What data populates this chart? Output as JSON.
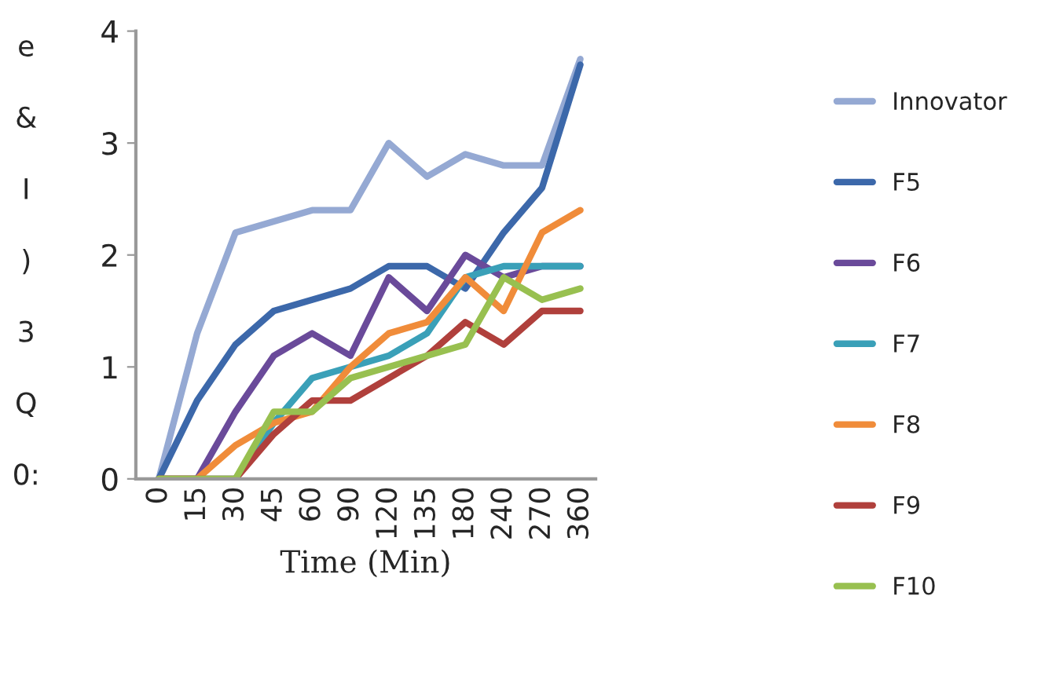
{
  "chart_data": {
    "type": "line",
    "xlabel": "Time (Min)",
    "categories": [
      "0",
      "15",
      "30",
      "45",
      "60",
      "90",
      "120",
      "135",
      "180",
      "240",
      "270",
      "360"
    ],
    "series": [
      {
        "name": "Innovator",
        "color": "#95a9d3",
        "values": [
          0,
          1.3,
          2.2,
          2.3,
          2.4,
          2.4,
          3.0,
          2.7,
          2.9,
          2.8,
          2.8,
          3.75
        ]
      },
      {
        "name": "F5",
        "color": "#3c68aa",
        "values": [
          0,
          0.7,
          1.2,
          1.5,
          1.6,
          1.7,
          1.9,
          1.9,
          1.7,
          2.2,
          2.6,
          3.7
        ]
      },
      {
        "name": "F6",
        "color": "#6a4a9a",
        "values": [
          0,
          0,
          0.6,
          1.1,
          1.3,
          1.1,
          1.8,
          1.5,
          2.0,
          1.8,
          1.9,
          1.9
        ]
      },
      {
        "name": "F7",
        "color": "#3aa0b8",
        "values": [
          0,
          0,
          0,
          0.5,
          0.9,
          1.0,
          1.1,
          1.3,
          1.8,
          1.9,
          1.9,
          1.9
        ]
      },
      {
        "name": "F8",
        "color": "#f08c3a",
        "values": [
          0,
          0,
          0.3,
          0.5,
          0.6,
          1.0,
          1.3,
          1.4,
          1.8,
          1.5,
          2.2,
          2.4
        ]
      },
      {
        "name": "F9",
        "color": "#b0403c",
        "values": [
          0,
          0,
          0,
          0.4,
          0.7,
          0.7,
          0.9,
          1.1,
          1.4,
          1.2,
          1.5,
          1.5
        ]
      },
      {
        "name": "F10",
        "color": "#98c050",
        "values": [
          0,
          0,
          0,
          0.6,
          0.6,
          0.9,
          1.0,
          1.1,
          1.2,
          1.8,
          1.6,
          1.7
        ]
      }
    ],
    "annotations": [
      "e",
      "&",
      "I",
      ")",
      "3",
      "Q",
      "0:"
    ],
    "ylim": [
      0,
      4
    ],
    "yticks": [
      0,
      1,
      2,
      3,
      4
    ],
    "grid": false,
    "legend": "right",
    "marker": "none",
    "line_style": "solid"
  }
}
